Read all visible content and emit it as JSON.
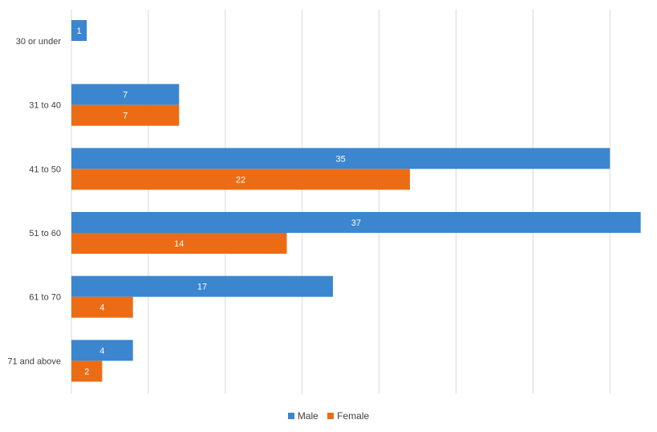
{
  "chart_data": {
    "type": "bar",
    "orientation": "horizontal",
    "categories": [
      "30 or under",
      "31 to 40",
      "41 to 50",
      "51 to 60",
      "61 to 70",
      "71 and above"
    ],
    "series": [
      {
        "name": "Male",
        "color": "#3b86cf",
        "values": [
          1,
          7,
          35,
          37,
          17,
          4
        ]
      },
      {
        "name": "Female",
        "color": "#ec6c16",
        "values": [
          0,
          7,
          22,
          14,
          4,
          2
        ]
      }
    ],
    "xlim": [
      0,
      37
    ],
    "grid": true,
    "data_labels": true,
    "legend_position": "bottom"
  }
}
